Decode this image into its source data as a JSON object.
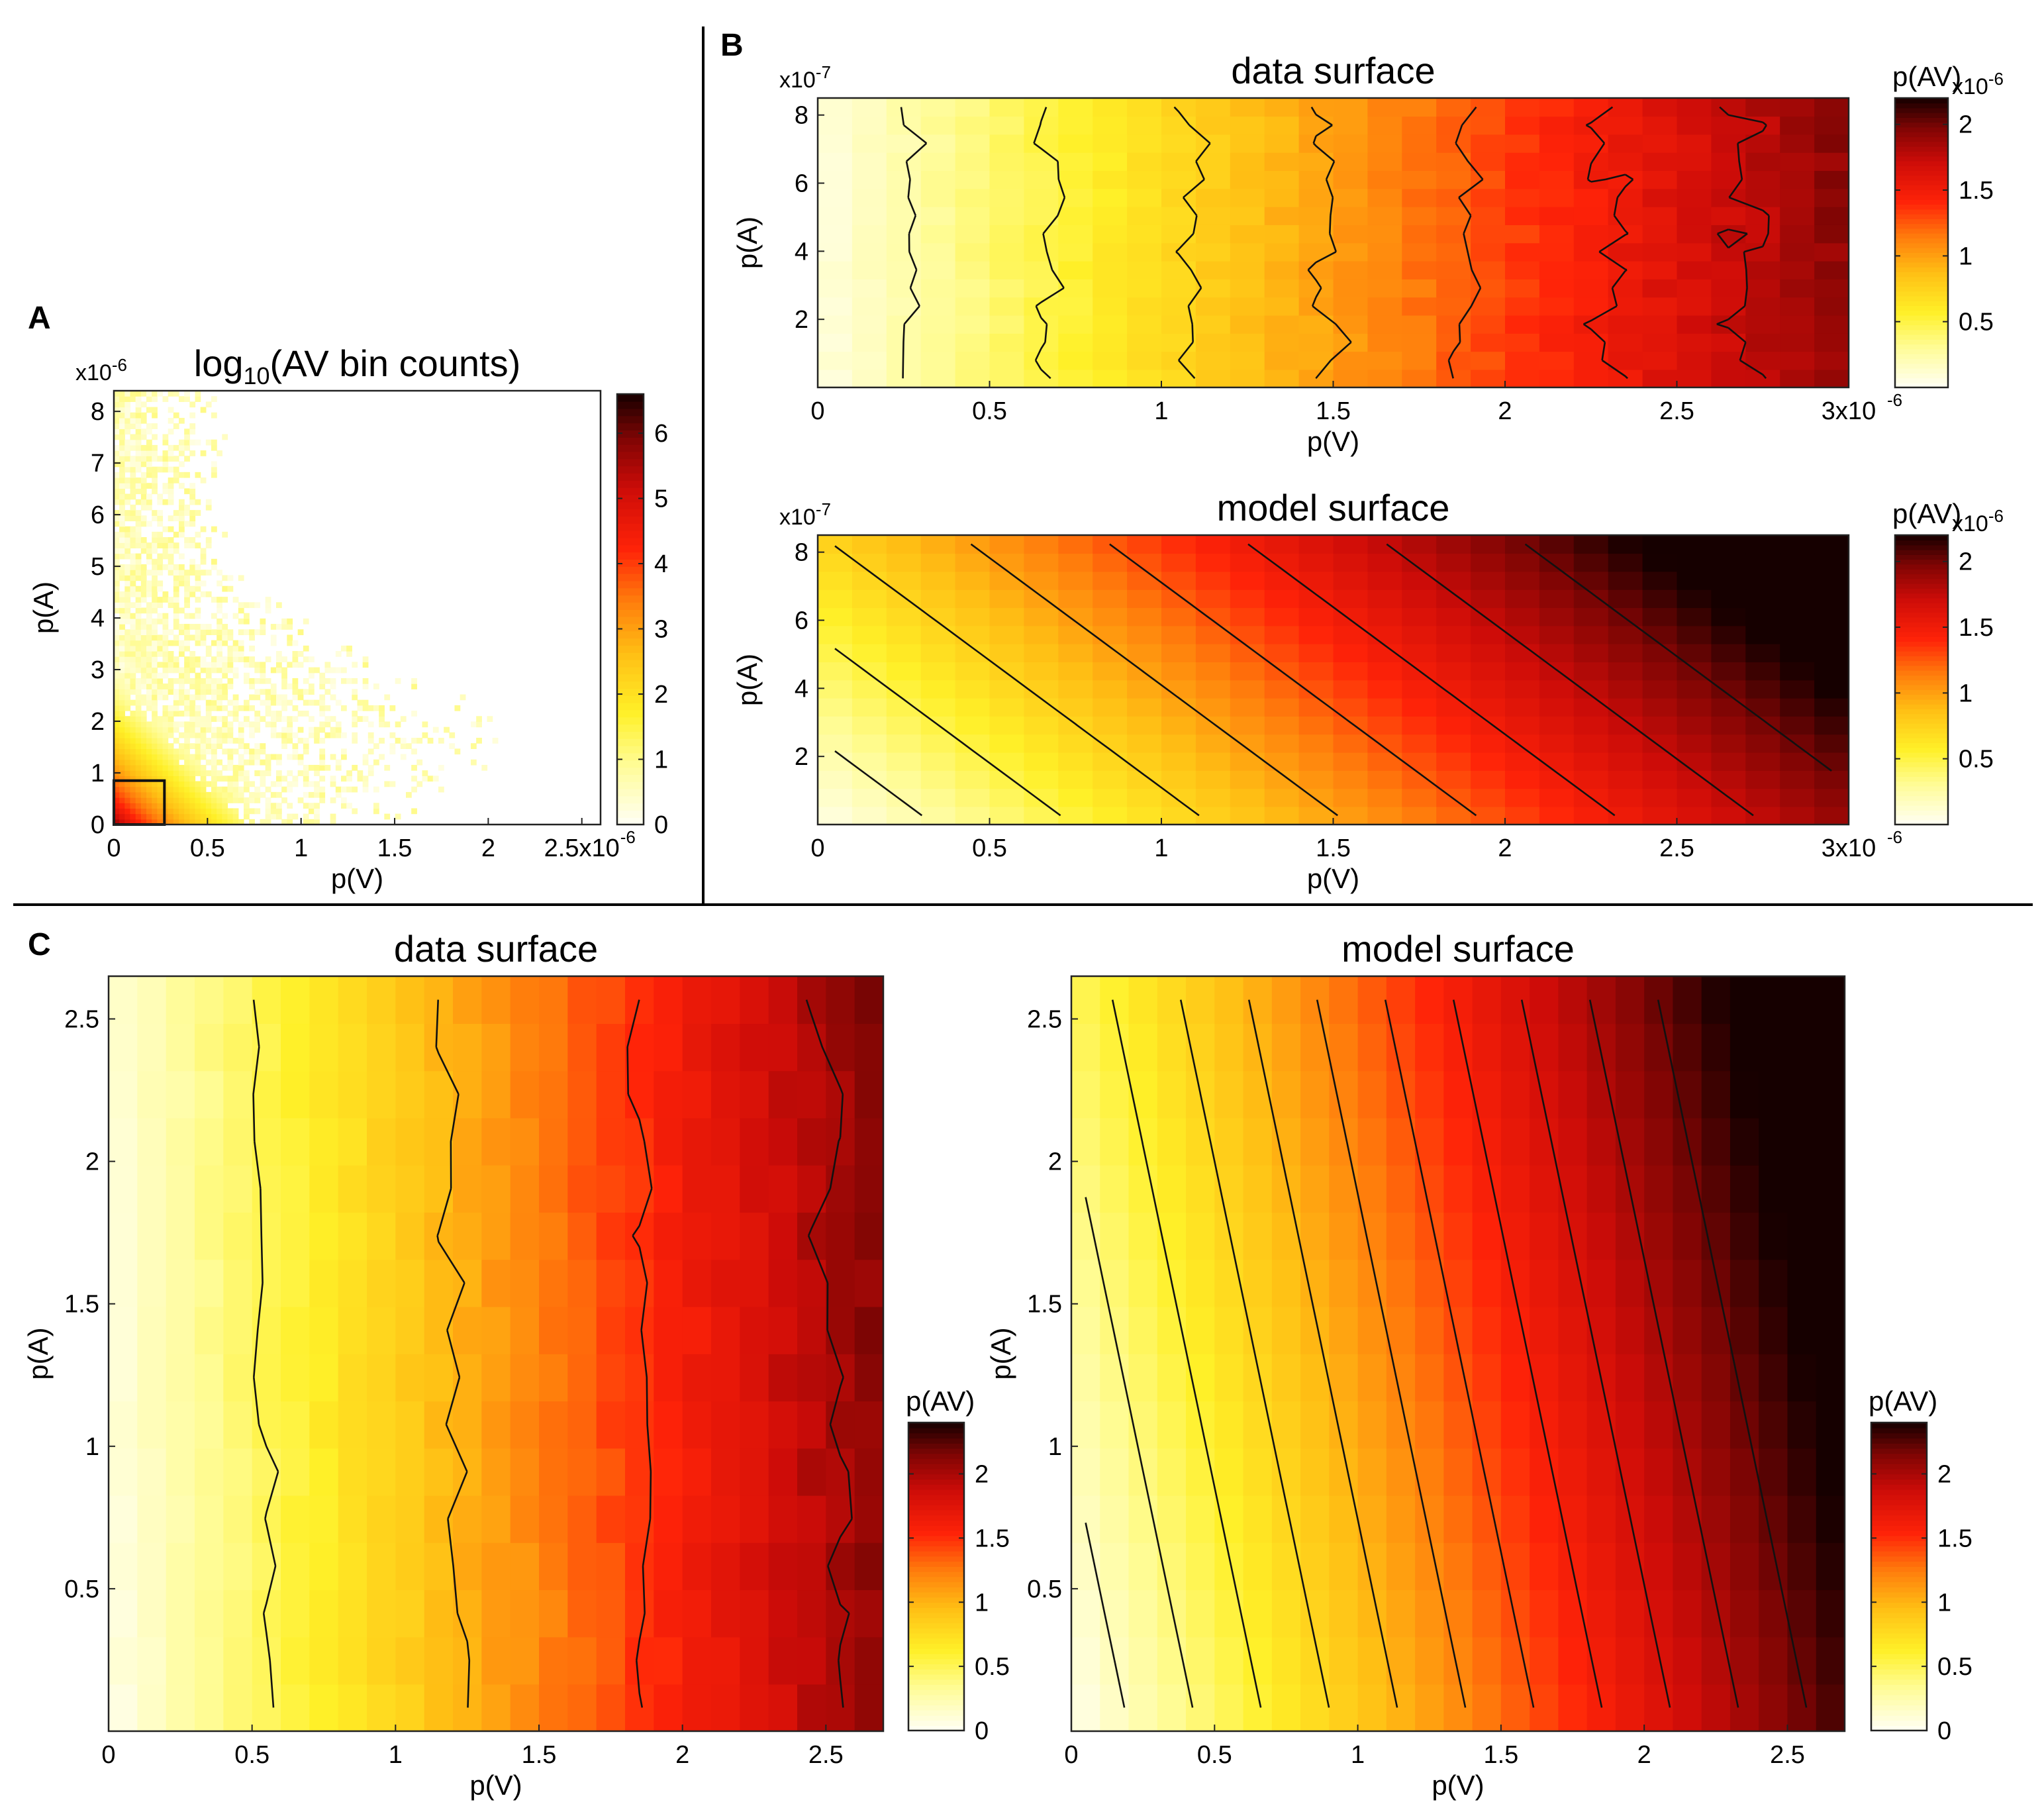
{
  "panel_letters": {
    "a": "A",
    "b": "B",
    "c": "C"
  },
  "chart_data": [
    {
      "id": "A",
      "type": "heatmap",
      "title": "log10(AV bin counts)",
      "title_parts": {
        "base": "log",
        "sub": "10",
        "rest": "(AV bin counts)"
      },
      "xlabel": "p(V)",
      "ylabel": "p(A)",
      "x_exponent": "x10-6",
      "y_exponent": "x10-6",
      "x_exp_parts": {
        "base": "x10",
        "sup": "-6"
      },
      "y_exp_parts": {
        "base": "x10",
        "sup": "-6"
      },
      "xlim": [
        0,
        2.6
      ],
      "ylim": [
        0,
        8.4
      ],
      "xticks": [
        0,
        0.5,
        1,
        1.5,
        2,
        2.5
      ],
      "xtick_labels": [
        "0",
        "0.5",
        "1",
        "1.5",
        "2",
        "2.5x10"
      ],
      "yticks": [
        0,
        1,
        2,
        3,
        4,
        5,
        6,
        7,
        8
      ],
      "ytick_labels": [
        "0",
        "1",
        "2",
        "3",
        "4",
        "5",
        "6",
        "7",
        "8"
      ],
      "colorbar": {
        "min": 0,
        "max": 6.6,
        "ticks": [
          0,
          1,
          2,
          3,
          4,
          5,
          6
        ],
        "tick_labels": [
          "0",
          "1",
          "2",
          "3",
          "4",
          "5",
          "6"
        ],
        "label": ""
      },
      "highlight_box": {
        "x": [
          0,
          0.27
        ],
        "y": [
          0,
          0.85
        ]
      },
      "value_model": "log10 counts decreasing with distance from origin: v = 6.2 - 3.3*(x/0.35 + y/1.2)^0.6"
    },
    {
      "id": "B-data",
      "type": "heatmap",
      "title": "data surface",
      "xlabel": "p(V)",
      "ylabel": "p(A)",
      "x_exponent": "x10-6",
      "y_exponent": "x10-7",
      "x_exp_parts": {
        "base": "x10",
        "sup": "-6"
      },
      "y_exp_parts": {
        "base": "x10",
        "sup": "-7"
      },
      "xlim": [
        0,
        3
      ],
      "ylim": [
        0,
        8.5
      ],
      "xticks": [
        0,
        0.5,
        1,
        1.5,
        2,
        2.5,
        3
      ],
      "xtick_labels": [
        "0",
        "0.5",
        "1",
        "1.5",
        "2",
        "2.5",
        "3x10"
      ],
      "yticks": [
        2,
        4,
        6,
        8
      ],
      "ytick_labels": [
        "2",
        "4",
        "6",
        "8"
      ],
      "colorbar": {
        "min": 0,
        "max": 2.2,
        "ticks": [
          0.5,
          1,
          1.5,
          2
        ],
        "tick_labels": [
          "0.5",
          "1",
          "1.5",
          "2"
        ],
        "label": "p(AV)",
        "exponent": "x10-6",
        "exp_parts": {
          "base": "x10",
          "sup": "-6"
        }
      },
      "contour_levels": [
        0.25,
        0.5,
        0.75,
        1.0,
        1.25,
        1.5,
        1.75,
        2.0
      ],
      "grid": [
        30,
        16
      ],
      "model": {
        "a": 0.62,
        "b": 0.0,
        "c": 0.08,
        "noise": 0.08
      }
    },
    {
      "id": "B-model",
      "type": "heatmap",
      "title": "model surface",
      "xlabel": "p(V)",
      "ylabel": "p(A)",
      "x_exponent": "x10-6",
      "y_exponent": "x10-7",
      "x_exp_parts": {
        "base": "x10",
        "sup": "-6"
      },
      "y_exp_parts": {
        "base": "x10",
        "sup": "-7"
      },
      "xlim": [
        0,
        3
      ],
      "ylim": [
        0,
        8.5
      ],
      "xticks": [
        0,
        0.5,
        1,
        1.5,
        2,
        2.5,
        3
      ],
      "xtick_labels": [
        "0",
        "0.5",
        "1",
        "1.5",
        "2",
        "2.5",
        "3x10"
      ],
      "yticks": [
        2,
        4,
        6,
        8
      ],
      "ytick_labels": [
        "2",
        "4",
        "6",
        "8"
      ],
      "colorbar": {
        "min": 0,
        "max": 2.2,
        "ticks": [
          0.5,
          1,
          1.5,
          2
        ],
        "tick_labels": [
          "0.5",
          "1",
          "1.5",
          "2"
        ],
        "label": "p(AV)",
        "exponent": "x10-6",
        "exp_parts": {
          "base": "x10",
          "sup": "-6"
        }
      },
      "contour_levels": [
        0.25,
        0.5,
        0.75,
        1.0,
        1.25,
        1.5,
        1.75,
        2.0
      ],
      "grid": [
        30,
        16
      ],
      "model": {
        "a": 0.62,
        "b": 0.083,
        "c": 0.04,
        "noise": 0
      }
    },
    {
      "id": "C-data",
      "type": "heatmap",
      "title": "data surface",
      "xlabel": "p(V)",
      "ylabel": "p(A)",
      "xlim": [
        0,
        2.7
      ],
      "ylim": [
        0,
        2.65
      ],
      "xticks": [
        0,
        0.5,
        1,
        1.5,
        2,
        2.5
      ],
      "xtick_labels": [
        "0",
        "0.5",
        "1",
        "1.5",
        "2",
        "2.5"
      ],
      "yticks": [
        0.5,
        1,
        1.5,
        2,
        2.5
      ],
      "ytick_labels": [
        "0.5",
        "1",
        "1.5",
        "2",
        "2.5"
      ],
      "colorbar": {
        "min": 0,
        "max": 2.4,
        "ticks": [
          0,
          0.5,
          1,
          1.5,
          2
        ],
        "tick_labels": [
          "0",
          "0.5",
          "1",
          "1.5",
          "2"
        ],
        "label": "p(AV)"
      },
      "contour_levels": [
        0.5,
        1.0,
        1.5,
        2.0
      ],
      "grid": [
        27,
        16
      ],
      "model": {
        "a": 0.76,
        "b": 0.02,
        "c": 0.06,
        "noise": 0.08
      }
    },
    {
      "id": "C-model",
      "type": "heatmap",
      "title": "model surface",
      "xlabel": "p(V)",
      "ylabel": "p(A)",
      "xlim": [
        0,
        2.7
      ],
      "ylim": [
        0,
        2.65
      ],
      "xticks": [
        0,
        0.5,
        1,
        1.5,
        2,
        2.5
      ],
      "xtick_labels": [
        "0",
        "0.5",
        "1",
        "1.5",
        "2",
        "2.5"
      ],
      "yticks": [
        0.5,
        1,
        1.5,
        2,
        2.5
      ],
      "ytick_labels": [
        "0.5",
        "1",
        "1.5",
        "2",
        "2.5"
      ],
      "colorbar": {
        "min": 0,
        "max": 2.4,
        "ticks": [
          0,
          0.5,
          1,
          1.5,
          2
        ],
        "tick_labels": [
          "0",
          "0.5",
          "1",
          "1.5",
          "2"
        ],
        "label": "p(AV)"
      },
      "contour_levels": [
        0.2,
        0.4,
        0.6,
        0.8,
        1.0,
        1.2,
        1.4,
        1.6,
        1.8,
        2.0,
        2.2
      ],
      "grid": [
        27,
        16
      ],
      "model": {
        "a": 0.84,
        "b": 0.175,
        "c": 0.03,
        "noise": 0
      }
    }
  ]
}
